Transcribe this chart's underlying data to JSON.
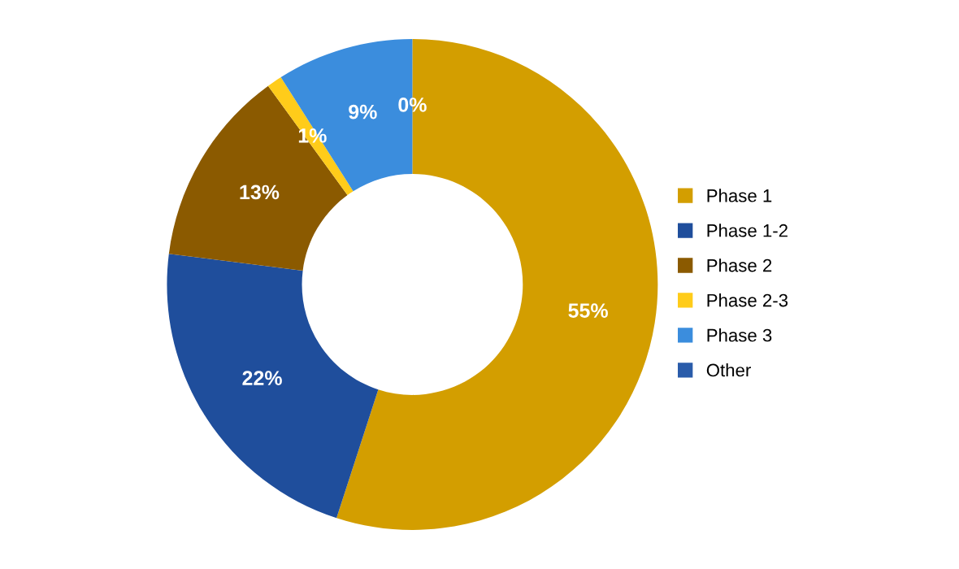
{
  "chart_data": {
    "type": "donut",
    "categories": [
      "Phase 1",
      "Phase 1-2",
      "Phase 2",
      "Phase 2-3",
      "Phase 3",
      "Other"
    ],
    "values": [
      55,
      22,
      13,
      1,
      9,
      0
    ],
    "colors": [
      "#d39e00",
      "#1f4e9c",
      "#8b5a00",
      "#ffcc1a",
      "#3b8ddd",
      "#2a5caa"
    ],
    "value_labels": [
      "55%",
      "22%",
      "13%",
      "1%",
      "9%",
      "0%"
    ],
    "legend": "right"
  }
}
